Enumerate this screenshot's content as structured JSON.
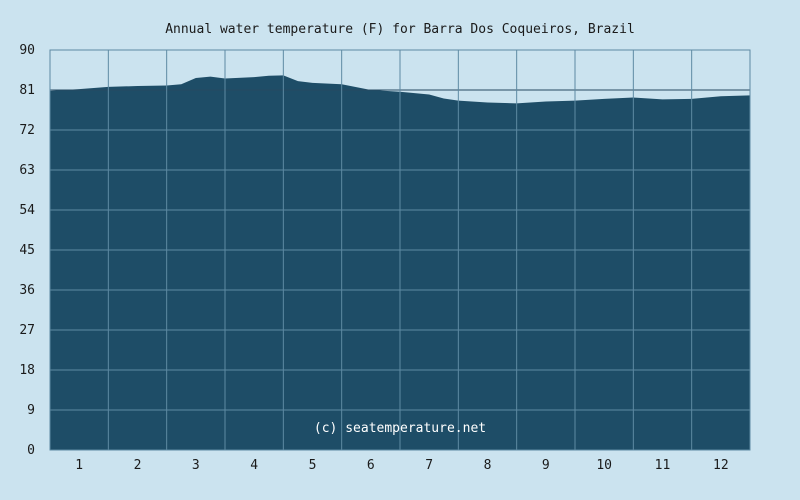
{
  "chart_data": {
    "type": "area",
    "title": "Annual water temperature (F) for Barra Dos Coqueiros, Brazil",
    "xlabel": "",
    "ylabel": "",
    "categories": [
      "1",
      "2",
      "3",
      "4",
      "5",
      "6",
      "7",
      "8",
      "9",
      "10",
      "11",
      "12"
    ],
    "xlim": [
      0.5,
      12.5
    ],
    "ylim": [
      0,
      90
    ],
    "yticks": [
      "0",
      "9",
      "18",
      "27",
      "36",
      "45",
      "54",
      "63",
      "72",
      "81",
      "90"
    ],
    "grid": true,
    "legend": "none",
    "annotation": "(c) seatemperature.net",
    "series": [
      {
        "x": [
          0.5,
          1.0,
          1.5,
          2.0,
          2.5,
          2.75,
          3.0,
          3.25,
          3.5,
          4.0,
          4.25,
          4.5,
          4.75,
          5.0,
          5.5,
          6.0,
          6.5,
          7.0,
          7.25,
          7.5,
          8.0,
          8.5,
          9.0,
          9.5,
          10.0,
          10.5,
          11.0,
          11.5,
          12.0,
          12.5
        ],
        "values": [
          80.8,
          81.2,
          81.7,
          81.9,
          82.0,
          82.3,
          83.7,
          84.0,
          83.6,
          83.9,
          84.2,
          84.3,
          83.0,
          82.6,
          82.3,
          81.0,
          80.6,
          80.0,
          79.1,
          78.6,
          78.2,
          78.0,
          78.4,
          78.6,
          79.0,
          79.3,
          78.9,
          79.0,
          79.6,
          79.8
        ]
      }
    ],
    "colors": {
      "background": "#cbe3ef",
      "plot": "#cbe3ef",
      "fill": "#1e4d67",
      "grid": "#5e8aa3",
      "reference_line": "#1a3a50",
      "watermark": "#ffffff"
    }
  }
}
